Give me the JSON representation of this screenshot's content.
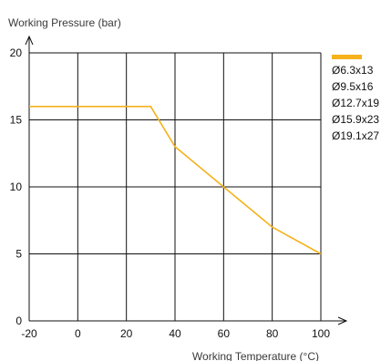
{
  "chart_data": {
    "type": "line",
    "title": "",
    "xlabel": "Working Temperature (°C)",
    "ylabel": "Working Pressure (bar)",
    "xlim": [
      -20,
      100
    ],
    "ylim": [
      0,
      20
    ],
    "x_ticks": [
      "-20",
      "0",
      "20",
      "40",
      "60",
      "80",
      "100"
    ],
    "y_ticks": [
      "0",
      "5",
      "10",
      "15",
      "20"
    ],
    "grid": true,
    "legend_position": "right",
    "legend": [
      "Ø6.3x13",
      "Ø9.5x16",
      "Ø12.7x19",
      "Ø15.9x23",
      "Ø19.1x27"
    ],
    "series": [
      {
        "x": [
          -20,
          30,
          40,
          60,
          80,
          100
        ],
        "y": [
          16,
          16,
          13,
          10,
          7,
          5
        ]
      }
    ],
    "colors": {
      "line": "#F5B21B",
      "grid": "#111111"
    }
  }
}
